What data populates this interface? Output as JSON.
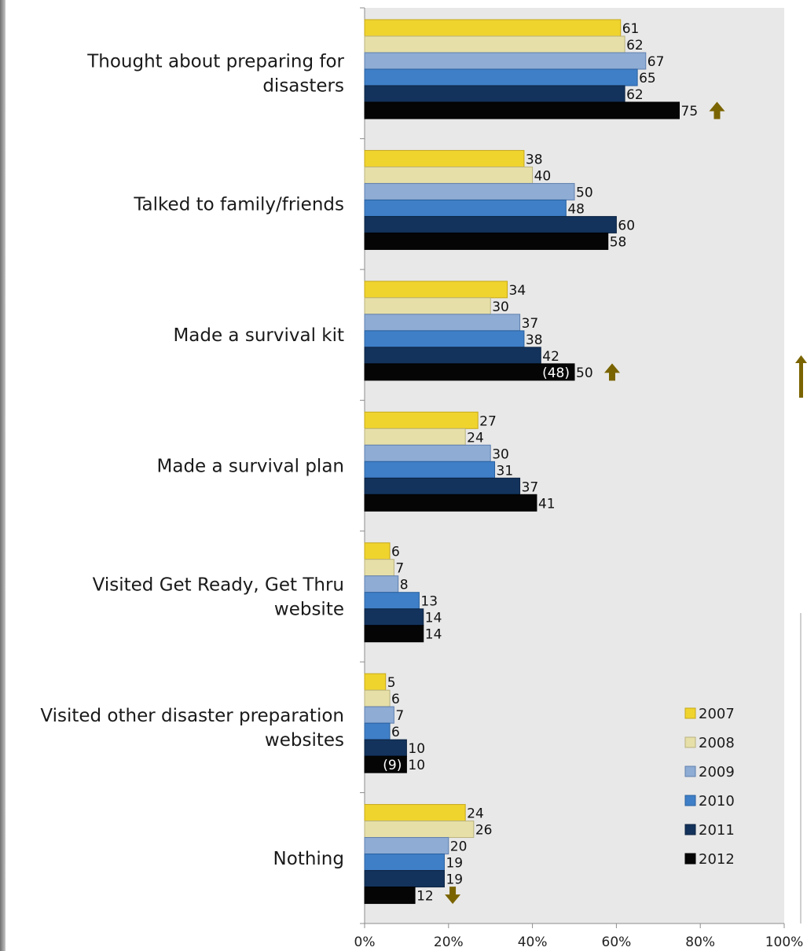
{
  "chart_data": {
    "type": "bar",
    "orientation": "horizontal",
    "categories": [
      "Thought about preparing for disasters",
      "Talked to family/friends",
      "Made a survival kit",
      "Made a survival plan",
      "Visited Get Ready, Get Thru website",
      "Visited other disaster preparation websites",
      "Nothing"
    ],
    "category_lines": [
      [
        "Thought about preparing for",
        "disasters"
      ],
      [
        "Talked to family/friends"
      ],
      [
        "Made a survival kit"
      ],
      [
        "Made a survival plan"
      ],
      [
        "Visited Get Ready, Get Thru",
        "website"
      ],
      [
        "Visited other disaster preparation",
        "websites"
      ],
      [
        "Nothing"
      ]
    ],
    "series": [
      {
        "name": "2007",
        "color": "#f0d42e",
        "border": "#c5a81a",
        "values": [
          61,
          38,
          34,
          27,
          6,
          5,
          24
        ]
      },
      {
        "name": "2008",
        "color": "#e6e0a8",
        "border": "#b9b17e",
        "values": [
          62,
          40,
          30,
          24,
          7,
          6,
          26
        ]
      },
      {
        "name": "2009",
        "color": "#8eacd4",
        "border": "#5f7fae",
        "values": [
          67,
          50,
          37,
          30,
          8,
          7,
          20
        ]
      },
      {
        "name": "2010",
        "color": "#3f7fc7",
        "border": "#28609f",
        "values": [
          65,
          48,
          38,
          31,
          13,
          6,
          19
        ]
      },
      {
        "name": "2011",
        "color": "#13335c",
        "border": "#0b2240",
        "values": [
          62,
          60,
          42,
          37,
          14,
          10,
          19
        ]
      },
      {
        "name": "2012",
        "color": "#050505",
        "border": "#000000",
        "values": [
          75,
          58,
          50,
          41,
          14,
          10,
          12
        ]
      }
    ],
    "annotations": [
      {
        "category_index": 0,
        "series_index": 5,
        "arrow": "up"
      },
      {
        "category_index": 2,
        "series_index": 5,
        "arrow": "up",
        "inner_label": "(48)"
      },
      {
        "category_index": 5,
        "series_index": 5,
        "inner_label": "(9)"
      },
      {
        "category_index": 6,
        "series_index": 5,
        "arrow": "down"
      }
    ],
    "xlim": [
      0,
      100
    ],
    "x_ticks": [
      "0%",
      "20%",
      "40%",
      "60%",
      "80%",
      "100%"
    ],
    "legend_position": "bottom-right",
    "grid": false,
    "plot_background": "#e8e8e8",
    "arrow_color": "#7a6400"
  }
}
